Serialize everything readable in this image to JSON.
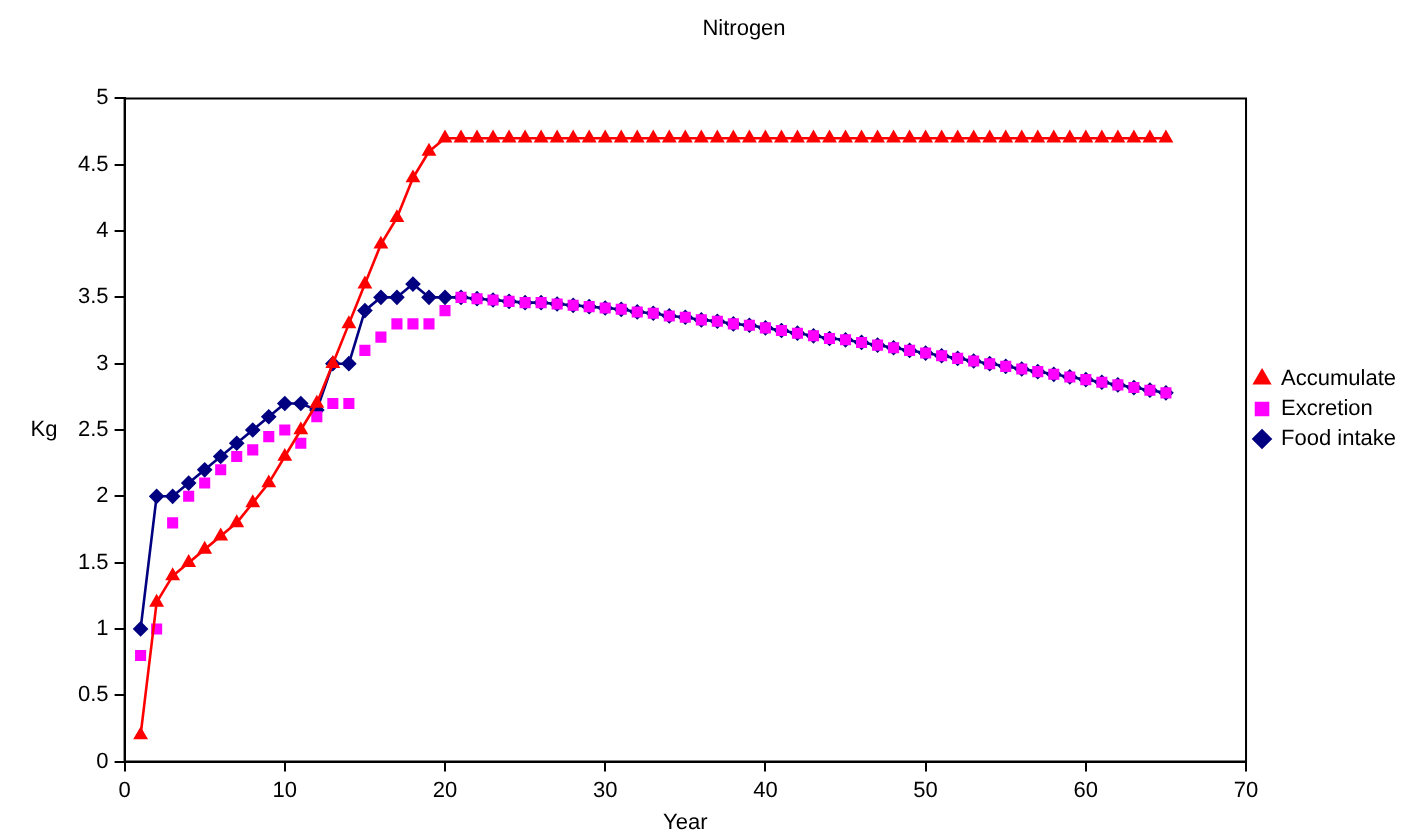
{
  "chart_data": {
    "type": "line",
    "title": "Nitrogen",
    "xlabel": "Year",
    "ylabel": "Kg",
    "x": [
      1,
      2,
      3,
      4,
      5,
      6,
      7,
      8,
      9,
      10,
      11,
      12,
      13,
      14,
      15,
      16,
      17,
      18,
      19,
      20,
      21,
      22,
      23,
      24,
      25,
      26,
      27,
      28,
      29,
      30,
      31,
      32,
      33,
      34,
      35,
      36,
      37,
      38,
      39,
      40,
      41,
      42,
      43,
      44,
      45,
      46,
      47,
      48,
      49,
      50,
      51,
      52,
      53,
      54,
      55,
      56,
      57,
      58,
      59,
      60,
      61,
      62,
      63,
      64,
      65
    ],
    "xlim": [
      0,
      70
    ],
    "xticks": [
      0,
      10,
      20,
      30,
      40,
      50,
      60,
      70
    ],
    "ylim": [
      0,
      5
    ],
    "yticks": [
      0,
      0.5,
      1,
      1.5,
      2,
      2.5,
      3,
      3.5,
      4,
      4.5,
      5
    ],
    "grid": false,
    "legend": "right",
    "series": [
      {
        "name": "Food intake",
        "color": "#000080",
        "marker": "diamond",
        "line_style": "solid",
        "values": [
          1.0,
          2.0,
          2.0,
          2.1,
          2.2,
          2.3,
          2.4,
          2.5,
          2.6,
          2.7,
          2.7,
          2.65,
          3.0,
          3.0,
          3.4,
          3.5,
          3.5,
          3.6,
          3.5,
          3.5,
          3.5,
          3.49,
          3.48,
          3.47,
          3.46,
          3.46,
          3.45,
          3.44,
          3.43,
          3.42,
          3.41,
          3.39,
          3.38,
          3.36,
          3.35,
          3.33,
          3.32,
          3.3,
          3.29,
          3.27,
          3.25,
          3.23,
          3.21,
          3.19,
          3.18,
          3.16,
          3.14,
          3.12,
          3.1,
          3.08,
          3.06,
          3.04,
          3.02,
          3.0,
          2.98,
          2.96,
          2.94,
          2.92,
          2.9,
          2.88,
          2.86,
          2.84,
          2.82,
          2.8,
          2.78
        ]
      },
      {
        "name": "Excretion",
        "type": "scatter",
        "color": "#ff00ff",
        "marker": "square",
        "values": [
          0.8,
          1.0,
          1.8,
          2.0,
          2.1,
          2.2,
          2.3,
          2.35,
          2.45,
          2.5,
          2.4,
          2.6,
          2.7,
          2.7,
          3.1,
          3.2,
          3.3,
          3.3,
          3.3,
          3.4,
          3.5,
          3.49,
          3.48,
          3.47,
          3.46,
          3.46,
          3.45,
          3.44,
          3.43,
          3.42,
          3.41,
          3.39,
          3.38,
          3.36,
          3.35,
          3.33,
          3.32,
          3.3,
          3.29,
          3.27,
          3.25,
          3.23,
          3.21,
          3.19,
          3.18,
          3.16,
          3.14,
          3.12,
          3.1,
          3.08,
          3.06,
          3.04,
          3.02,
          3.0,
          2.98,
          2.96,
          2.94,
          2.92,
          2.9,
          2.88,
          2.86,
          2.84,
          2.82,
          2.8,
          2.78
        ]
      },
      {
        "name": "Accumulate",
        "color": "#ff0000",
        "marker": "triangle",
        "line_style": "solid",
        "values": [
          0.2,
          1.2,
          1.4,
          1.5,
          1.6,
          1.7,
          1.8,
          1.95,
          2.1,
          2.3,
          2.5,
          2.7,
          3.0,
          3.3,
          3.6,
          3.9,
          4.1,
          4.4,
          4.6,
          4.7,
          4.7,
          4.7,
          4.7,
          4.7,
          4.7,
          4.7,
          4.7,
          4.7,
          4.7,
          4.7,
          4.7,
          4.7,
          4.7,
          4.7,
          4.7,
          4.7,
          4.7,
          4.7,
          4.7,
          4.7,
          4.7,
          4.7,
          4.7,
          4.7,
          4.7,
          4.7,
          4.7,
          4.7,
          4.7,
          4.7,
          4.7,
          4.7,
          4.7,
          4.7,
          4.7,
          4.7,
          4.7,
          4.7,
          4.7,
          4.7,
          4.7,
          4.7,
          4.7,
          4.7,
          4.7
        ]
      }
    ]
  }
}
